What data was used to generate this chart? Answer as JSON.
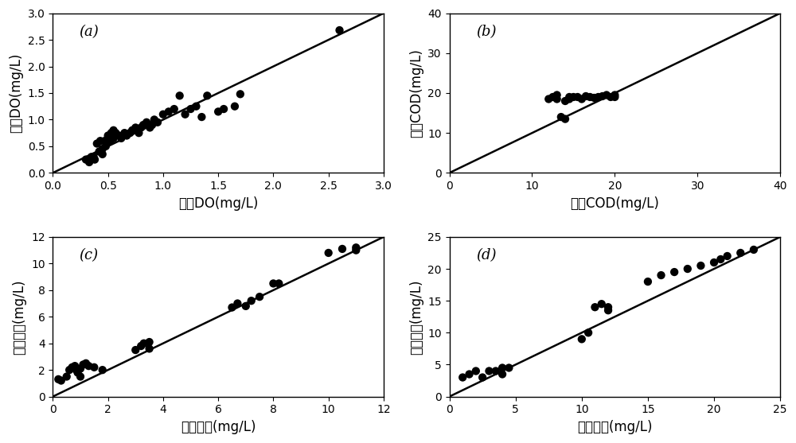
{
  "subplots": [
    {
      "label": "(a)",
      "xlabel": "测量DO(mg/L)",
      "ylabel": "计算DO(mg/L)",
      "xlim": [
        0,
        3
      ],
      "ylim": [
        0,
        3
      ],
      "xticks": [
        0,
        0.5,
        1,
        1.5,
        2,
        2.5,
        3
      ],
      "yticks": [
        0,
        0.5,
        1,
        1.5,
        2,
        2.5,
        3
      ],
      "x": [
        0.3,
        0.33,
        0.35,
        0.37,
        0.38,
        0.4,
        0.42,
        0.43,
        0.45,
        0.45,
        0.47,
        0.48,
        0.5,
        0.5,
        0.52,
        0.53,
        0.55,
        0.55,
        0.57,
        0.6,
        0.62,
        0.65,
        0.67,
        0.7,
        0.72,
        0.75,
        0.78,
        0.8,
        0.82,
        0.85,
        0.88,
        0.9,
        0.92,
        0.95,
        1.0,
        1.05,
        1.1,
        1.15,
        1.2,
        1.25,
        1.3,
        1.35,
        1.4,
        1.5,
        1.55,
        1.65,
        1.7,
        2.6
      ],
      "y": [
        0.25,
        0.2,
        0.3,
        0.3,
        0.25,
        0.55,
        0.4,
        0.6,
        0.35,
        0.45,
        0.6,
        0.5,
        0.65,
        0.7,
        0.6,
        0.75,
        0.65,
        0.8,
        0.75,
        0.7,
        0.65,
        0.75,
        0.7,
        0.75,
        0.8,
        0.85,
        0.75,
        0.85,
        0.9,
        0.95,
        0.85,
        0.9,
        1.0,
        0.95,
        1.1,
        1.15,
        1.2,
        1.45,
        1.1,
        1.2,
        1.25,
        1.05,
        1.45,
        1.15,
        1.2,
        1.25,
        1.48,
        2.68
      ]
    },
    {
      "label": "(b)",
      "xlabel": "测量COD(mg/L)",
      "ylabel": "计算COD(mg/L)",
      "xlim": [
        0,
        40
      ],
      "ylim": [
        0,
        40
      ],
      "xticks": [
        0,
        10,
        20,
        30,
        40
      ],
      "yticks": [
        0,
        10,
        20,
        30,
        40
      ],
      "x": [
        12.0,
        12.5,
        13.0,
        13.0,
        13.5,
        14.0,
        14.0,
        14.5,
        14.5,
        15.0,
        15.5,
        16.0,
        16.5,
        17.0,
        17.5,
        18.0,
        18.5,
        19.0,
        19.5,
        20.0,
        20.0
      ],
      "y": [
        18.5,
        19.0,
        18.5,
        19.5,
        14.0,
        13.5,
        18.0,
        19.0,
        18.5,
        19.0,
        19.0,
        18.5,
        19.2,
        19.0,
        18.8,
        19.0,
        19.2,
        19.5,
        19.0,
        19.5,
        19.0
      ]
    },
    {
      "label": "(c)",
      "xlabel": "测量氨氮(mg/L)",
      "ylabel": "计算氨氮(mg/L)",
      "xlim": [
        0,
        12
      ],
      "ylim": [
        0,
        12
      ],
      "xticks": [
        0,
        2,
        4,
        6,
        8,
        10,
        12
      ],
      "yticks": [
        0,
        2,
        4,
        6,
        8,
        10,
        12
      ],
      "x": [
        0.2,
        0.3,
        0.5,
        0.6,
        0.7,
        0.8,
        0.85,
        0.9,
        1.0,
        1.0,
        1.1,
        1.2,
        1.3,
        1.5,
        1.8,
        3.0,
        3.2,
        3.3,
        3.5,
        3.5,
        6.5,
        6.7,
        7.0,
        7.2,
        7.5,
        8.0,
        8.2,
        10.0,
        10.5,
        11.0,
        11.0
      ],
      "y": [
        1.3,
        1.2,
        1.5,
        2.0,
        2.2,
        2.3,
        2.0,
        1.8,
        1.5,
        2.1,
        2.4,
        2.5,
        2.3,
        2.2,
        2.0,
        3.5,
        3.8,
        4.0,
        3.6,
        4.1,
        6.7,
        7.0,
        6.8,
        7.2,
        7.5,
        8.5,
        8.5,
        10.8,
        11.1,
        11.0,
        11.2
      ]
    },
    {
      "label": "(d)",
      "xlabel": "测量硝氮(mg/L)",
      "ylabel": "计算硝氮(mg/L)",
      "xlim": [
        0,
        25
      ],
      "ylim": [
        0,
        25
      ],
      "xticks": [
        0,
        5,
        10,
        15,
        20,
        25
      ],
      "yticks": [
        0,
        5,
        10,
        15,
        20,
        25
      ],
      "x": [
        1.0,
        1.5,
        2.0,
        2.5,
        3.0,
        3.5,
        4.0,
        4.0,
        4.5,
        10.0,
        10.5,
        11.0,
        11.5,
        12.0,
        12.0,
        15.0,
        16.0,
        17.0,
        18.0,
        19.0,
        20.0,
        20.5,
        21.0,
        22.0,
        23.0
      ],
      "y": [
        3.0,
        3.5,
        4.0,
        3.0,
        4.0,
        4.0,
        4.5,
        3.5,
        4.5,
        9.0,
        10.0,
        14.0,
        14.5,
        13.5,
        14.0,
        18.0,
        19.0,
        19.5,
        20.0,
        20.5,
        21.0,
        21.5,
        22.0,
        22.5,
        23.0
      ]
    }
  ],
  "marker_color": "#000000",
  "marker_size": 55,
  "line_color": "black",
  "line_width": 1.8,
  "label_fontsize": 12,
  "tick_fontsize": 10,
  "panel_label_fontsize": 13,
  "background_color": "white"
}
